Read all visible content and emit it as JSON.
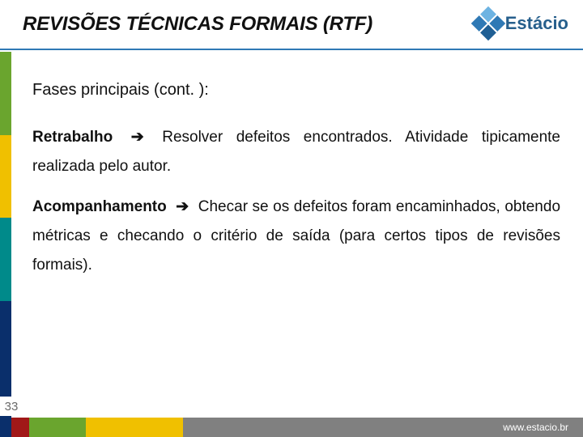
{
  "header": {
    "title": "REVISÕES TÉCNICAS FORMAIS (RTF)"
  },
  "brand": {
    "name": "Estácio"
  },
  "content": {
    "lead": "Fases principais (cont. ):",
    "item1": {
      "label": "Retrabalho",
      "arrow": "➔",
      "rest": "Resolver defeitos encontrados. Atividade tipicamente realizada pelo autor."
    },
    "item2": {
      "label": "Acompanhamento",
      "arrow": "➔",
      "rest": "Checar se os defeitos foram encaminhados, obtendo métricas e checando o critério de saída (para certos tipos de revisões formais)."
    }
  },
  "footer": {
    "url": "www.estacio.br",
    "page": "33"
  },
  "colors": {
    "rule": "#2f79b5",
    "sidebar": [
      "#6aa52e",
      "#f0c000",
      "#008a8a",
      "#0a2f6b"
    ],
    "footer": [
      "#0a2f6b",
      "#a11818",
      "#6aa52e",
      "#f0c000",
      "#808080"
    ]
  }
}
